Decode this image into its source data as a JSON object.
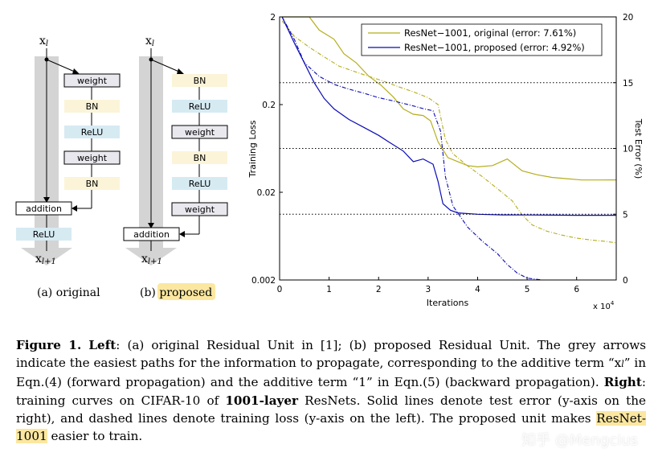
{
  "left_diagrams": {
    "original": {
      "input_label": "x",
      "input_sub": "l",
      "blocks": [
        "weight",
        "BN",
        "ReLU",
        "weight",
        "BN"
      ],
      "addition_label": "addition",
      "after_relu": "ReLU",
      "output_label": "x",
      "output_sub": "l+1",
      "caption_prefix": "(a)",
      "caption_text": "original"
    },
    "proposed": {
      "input_label": "x",
      "input_sub": "l",
      "blocks": [
        "BN",
        "ReLU",
        "weight",
        "BN",
        "ReLU",
        "weight"
      ],
      "addition_label": "addition",
      "output_label": "x",
      "output_sub": "l+1",
      "caption_prefix": "(b)",
      "caption_text": "proposed"
    }
  },
  "colors": {
    "weight_fill": "#e8e8ee",
    "bn_fill": "#fbf4d8",
    "relu_fill": "#d6eaf2",
    "arrow_grey": "#d4d4d4",
    "original_series": "#b5ae1c",
    "proposed_series": "#0b0bb5",
    "highlight": "#fbe7a0"
  },
  "chart_data": {
    "type": "line",
    "xlabel": "Iterations",
    "x_multiplier": "x 10",
    "x_multiplier_exp": "4",
    "xlim": [
      0,
      6.8
    ],
    "x_ticks": [
      "0",
      "1",
      "2",
      "3",
      "4",
      "5",
      "6"
    ],
    "y_left_label": "Training Loss",
    "y_left_scale": "log",
    "y_left_lim": [
      0.002,
      2
    ],
    "y_left_ticks": [
      "2",
      "0.2",
      "0.02",
      "0.002"
    ],
    "y_right_label": "Test Error (%)",
    "y_right_lim": [
      0,
      20
    ],
    "y_right_ticks": [
      "20",
      "15",
      "10",
      "5",
      "0"
    ],
    "grid_lines_right": [
      15,
      10,
      5
    ],
    "legend_position": "top-right",
    "series": [
      {
        "name": "ResNet−1001, original (error: 7.61%)",
        "color_key": "original_series",
        "test_error": [
          [
            0.05,
            20
          ],
          [
            0.6,
            20
          ],
          [
            0.8,
            19
          ],
          [
            1.1,
            18.3
          ],
          [
            1.3,
            17.2
          ],
          [
            1.55,
            16.5
          ],
          [
            1.8,
            15.5
          ],
          [
            2.05,
            14.8
          ],
          [
            2.3,
            13.9
          ],
          [
            2.5,
            13
          ],
          [
            2.7,
            12.6
          ],
          [
            2.9,
            12.5
          ],
          [
            3.05,
            12.1
          ],
          [
            3.2,
            10.5
          ],
          [
            3.3,
            9.9
          ],
          [
            3.4,
            9.3
          ],
          [
            3.6,
            9
          ],
          [
            3.8,
            8.7
          ],
          [
            4,
            8.6
          ],
          [
            4.3,
            8.7
          ],
          [
            4.6,
            9.2
          ],
          [
            4.9,
            8.3
          ],
          [
            5.2,
            8
          ],
          [
            5.5,
            7.8
          ],
          [
            5.8,
            7.7
          ],
          [
            6.1,
            7.6
          ],
          [
            6.4,
            7.6
          ],
          [
            6.8,
            7.61
          ]
        ],
        "training_loss": [
          [
            0.05,
            1.8
          ],
          [
            0.3,
            1.2
          ],
          [
            0.6,
            0.9
          ],
          [
            0.9,
            0.7
          ],
          [
            1.2,
            0.55
          ],
          [
            1.5,
            0.48
          ],
          [
            1.8,
            0.42
          ],
          [
            2.1,
            0.37
          ],
          [
            2.4,
            0.32
          ],
          [
            2.7,
            0.28
          ],
          [
            3.0,
            0.24
          ],
          [
            3.2,
            0.2
          ],
          [
            3.35,
            0.08
          ],
          [
            3.5,
            0.055
          ],
          [
            3.8,
            0.04
          ],
          [
            4.1,
            0.03
          ],
          [
            4.4,
            0.022
          ],
          [
            4.7,
            0.016
          ],
          [
            4.9,
            0.011
          ],
          [
            5.1,
            0.0085
          ],
          [
            5.4,
            0.0072
          ],
          [
            5.7,
            0.0065
          ],
          [
            6.0,
            0.006
          ],
          [
            6.3,
            0.0057
          ],
          [
            6.6,
            0.0055
          ],
          [
            6.8,
            0.0053
          ]
        ]
      },
      {
        "name": "ResNet−1001, proposed (error: 4.92%)",
        "color_key": "proposed_series",
        "test_error": [
          [
            0.05,
            20
          ],
          [
            0.3,
            18
          ],
          [
            0.5,
            16.5
          ],
          [
            0.7,
            15
          ],
          [
            0.9,
            13.8
          ],
          [
            1.1,
            13
          ],
          [
            1.4,
            12.2
          ],
          [
            1.7,
            11.6
          ],
          [
            2.0,
            11
          ],
          [
            2.2,
            10.5
          ],
          [
            2.5,
            9.8
          ],
          [
            2.7,
            9
          ],
          [
            2.9,
            9.2
          ],
          [
            3.1,
            8.8
          ],
          [
            3.2,
            7.5
          ],
          [
            3.3,
            5.8
          ],
          [
            3.45,
            5.3
          ],
          [
            3.6,
            5.1
          ],
          [
            4.0,
            5.0
          ],
          [
            4.5,
            4.95
          ],
          [
            5,
            4.94
          ],
          [
            5.5,
            4.93
          ],
          [
            6,
            4.92
          ],
          [
            6.8,
            4.92
          ]
        ],
        "training_loss": [
          [
            0.05,
            2
          ],
          [
            0.3,
            1.1
          ],
          [
            0.5,
            0.6
          ],
          [
            0.8,
            0.42
          ],
          [
            1.1,
            0.34
          ],
          [
            1.4,
            0.3
          ],
          [
            1.7,
            0.27
          ],
          [
            2.0,
            0.24
          ],
          [
            2.3,
            0.22
          ],
          [
            2.6,
            0.2
          ],
          [
            2.9,
            0.18
          ],
          [
            3.1,
            0.17
          ],
          [
            3.25,
            0.1
          ],
          [
            3.35,
            0.03
          ],
          [
            3.5,
            0.014
          ],
          [
            3.8,
            0.008
          ],
          [
            4.1,
            0.0055
          ],
          [
            4.4,
            0.004
          ],
          [
            4.6,
            0.003
          ],
          [
            4.8,
            0.0024
          ],
          [
            5.0,
            0.0021
          ],
          [
            5.3,
            0.002
          ]
        ]
      }
    ]
  },
  "caption": {
    "fig_label": "Figure 1.",
    "left_label": "Left",
    "p1": ": (a) original Residual Unit in [1]; (b) proposed Residual Unit. The grey arrows indicate the easiest paths for the information to propagate, corresponding to the additive term “x",
    "p1_sub": "l",
    "p2": "” in Eqn.(4) (forward propagation) and the additive term “1” in Eqn.(5) (backward propagation). ",
    "right_label": "Right",
    "p3": ": training curves on CIFAR-10 of ",
    "bold_term": "1001-layer",
    "p4": " ResNets. Solid lines denote test error (y-axis on the right), and dashed lines denote training loss (y-axis on the left). The proposed unit makes ",
    "highlight_term": "ResNet-1001",
    "p5": " easier to train."
  },
  "watermark": "知乎 @Mengcius"
}
